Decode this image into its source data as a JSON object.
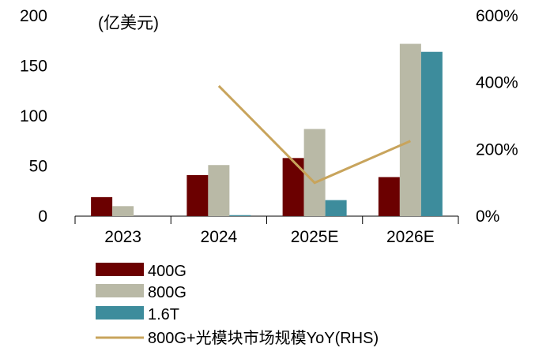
{
  "chart_data": {
    "type": "bar",
    "unit_label": "(亿美元)",
    "categories": [
      "2023",
      "2024",
      "2025E",
      "2026E"
    ],
    "series": [
      {
        "name": "400G",
        "values": [
          19,
          41,
          58,
          39
        ],
        "color": "#6b0000"
      },
      {
        "name": "800G",
        "values": [
          10,
          51,
          87,
          172
        ],
        "color": "#b9b9a6"
      },
      {
        "name": "1.6T",
        "values": [
          0,
          1,
          16,
          164
        ],
        "color": "#3d8c9c"
      }
    ],
    "line_series": {
      "name": "800G+光模块市场规模YoY(RHS)",
      "values": [
        null,
        390,
        100,
        225
      ],
      "color": "#c8a45c",
      "axis": "right"
    },
    "left_axis": {
      "ylim": [
        0,
        200
      ],
      "ticks": [
        "0",
        "50",
        "100",
        "150",
        "200"
      ]
    },
    "right_axis": {
      "ylim": [
        0,
        600
      ],
      "ticks": [
        "0%",
        "200%",
        "400%",
        "600%"
      ]
    },
    "legend_position": "bottom-left"
  }
}
